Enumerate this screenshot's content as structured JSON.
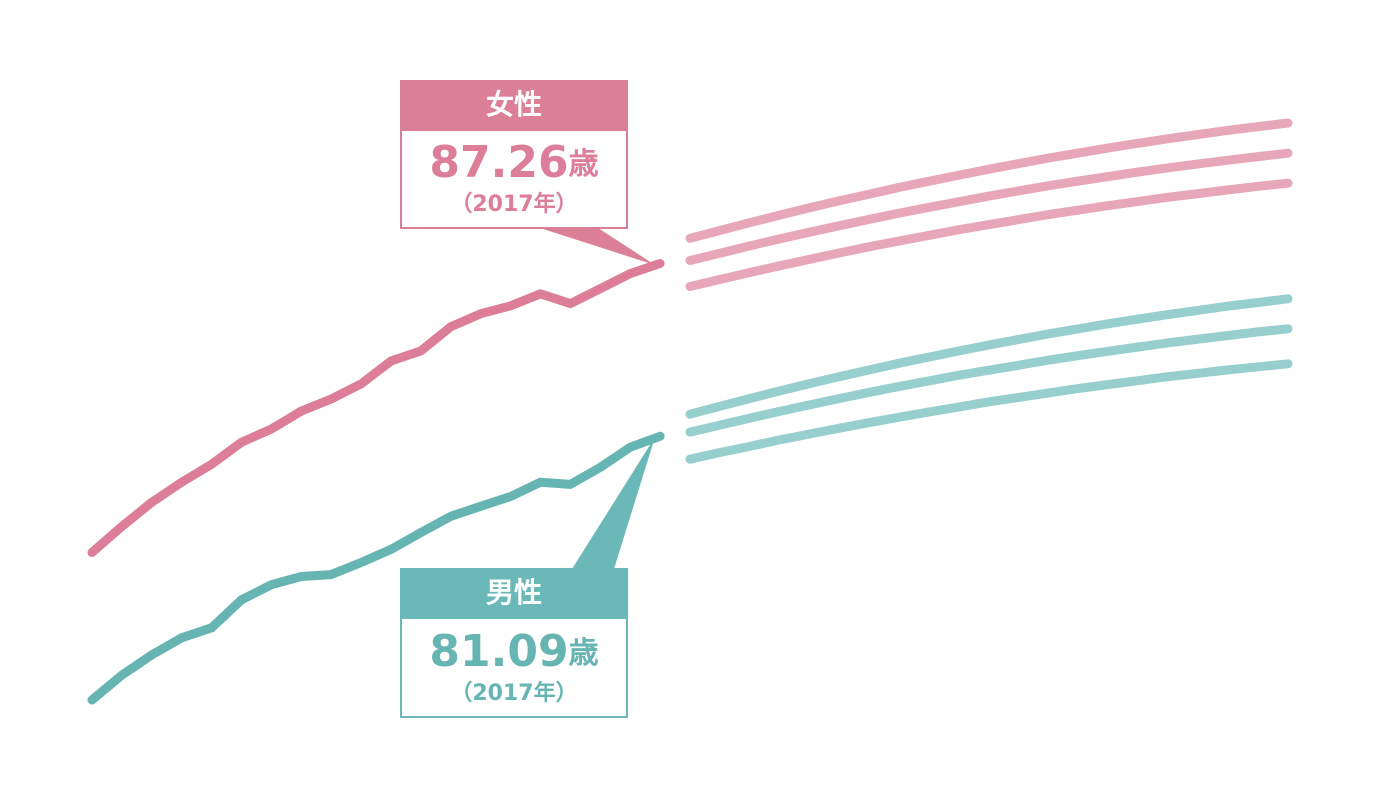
{
  "chart_data": {
    "type": "line",
    "series": [
      {
        "color": "#dc7e97",
        "values": [
          76.94,
          77.87,
          78.73,
          79.45,
          80.09,
          80.88,
          81.35,
          81.99,
          82.42,
          82.96,
          83.78,
          84.14,
          85.0,
          85.47,
          85.75,
          86.18,
          85.83,
          86.36,
          86.9,
          87.26,
          null,
          null,
          null,
          null,
          null,
          null,
          null,
          null,
          null,
          null,
          null,
          null,
          null,
          null,
          null,
          null,
          null,
          null,
          null,
          null,
          null
        ]
      },
      {
        "color": "#e8a7b8",
        "values": [
          null,
          null,
          null,
          null,
          null,
          null,
          null,
          null,
          null,
          null,
          null,
          null,
          null,
          null,
          null,
          null,
          null,
          null,
          null,
          null,
          88.16,
          88.44,
          88.72,
          88.99,
          89.25,
          89.5,
          89.74,
          89.98,
          90.2,
          90.42,
          90.63,
          90.83,
          91.03,
          91.21,
          91.39,
          91.56,
          91.72,
          91.87,
          92.02,
          92.15,
          92.28
        ]
      },
      {
        "color": "#e8a7b8",
        "values": [
          null,
          null,
          null,
          null,
          null,
          null,
          null,
          null,
          null,
          null,
          null,
          null,
          null,
          null,
          null,
          null,
          null,
          null,
          null,
          null,
          87.37,
          87.63,
          87.89,
          88.14,
          88.38,
          88.61,
          88.84,
          89.06,
          89.27,
          89.47,
          89.67,
          89.86,
          90.04,
          90.21,
          90.37,
          90.53,
          90.68,
          90.82,
          90.95,
          91.08,
          91.2
        ]
      },
      {
        "color": "#e8a7b8",
        "values": [
          null,
          null,
          null,
          null,
          null,
          null,
          null,
          null,
          null,
          null,
          null,
          null,
          null,
          null,
          null,
          null,
          null,
          null,
          null,
          null,
          86.44,
          86.69,
          86.94,
          87.18,
          87.41,
          87.64,
          87.86,
          88.07,
          88.27,
          88.47,
          88.65,
          88.83,
          89.01,
          89.17,
          89.33,
          89.48,
          89.63,
          89.76,
          89.89,
          90.02,
          90.13
        ]
      },
      {
        "color": "#66b5b3",
        "values": [
          71.67,
          72.56,
          73.28,
          73.89,
          74.25,
          75.25,
          75.79,
          76.08,
          76.15,
          76.58,
          77.05,
          77.65,
          78.23,
          78.59,
          78.94,
          79.45,
          79.37,
          79.98,
          80.7,
          81.09,
          null,
          null,
          null,
          null,
          null,
          null,
          null,
          null,
          null,
          null,
          null,
          null,
          null,
          null,
          null,
          null,
          null,
          null,
          null,
          null,
          null
        ]
      },
      {
        "color": "#96cfcd",
        "values": [
          null,
          null,
          null,
          null,
          null,
          null,
          null,
          null,
          null,
          null,
          null,
          null,
          null,
          null,
          null,
          null,
          null,
          null,
          null,
          null,
          81.88,
          82.16,
          82.44,
          82.71,
          82.97,
          83.22,
          83.46,
          83.7,
          83.92,
          84.14,
          84.35,
          84.55,
          84.75,
          84.93,
          85.11,
          85.28,
          85.44,
          85.59,
          85.74,
          85.87,
          86.0
        ]
      },
      {
        "color": "#96cfcd",
        "values": [
          null,
          null,
          null,
          null,
          null,
          null,
          null,
          null,
          null,
          null,
          null,
          null,
          null,
          null,
          null,
          null,
          null,
          null,
          null,
          null,
          81.24,
          81.49,
          81.74,
          81.98,
          82.21,
          82.44,
          82.66,
          82.87,
          83.07,
          83.27,
          83.45,
          83.63,
          83.81,
          83.97,
          84.13,
          84.28,
          84.43,
          84.56,
          84.69,
          84.82,
          84.93
        ]
      },
      {
        "color": "#96cfcd",
        "values": [
          null,
          null,
          null,
          null,
          null,
          null,
          null,
          null,
          null,
          null,
          null,
          null,
          null,
          null,
          null,
          null,
          null,
          null,
          null,
          null,
          80.27,
          80.51,
          80.73,
          80.96,
          81.17,
          81.38,
          81.58,
          81.77,
          81.96,
          82.14,
          82.32,
          82.48,
          82.64,
          82.8,
          82.94,
          83.08,
          83.22,
          83.34,
          83.46,
          83.57,
          83.68
        ]
      }
    ],
    "annotations": [
      {
        "title": "女性",
        "value": 87.26,
        "unit": "歳",
        "note": "（2017年）",
        "color": "#dc8098"
      },
      {
        "title": "男性",
        "value": 81.09,
        "unit": "歳",
        "note": "（2017年）",
        "color": "#6bb8b8"
      }
    ]
  }
}
